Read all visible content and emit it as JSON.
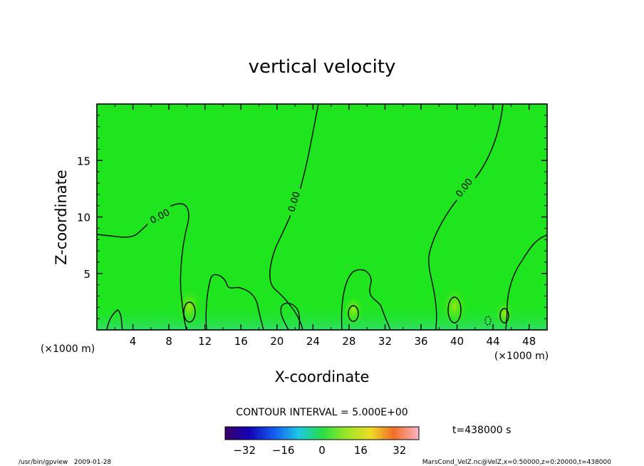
{
  "chart_data": {
    "type": "heatmap",
    "title": "vertical velocity",
    "xlabel": "X-coordinate",
    "ylabel": "Z-coordinate",
    "x_unit": "(×1000 m)",
    "y_unit": "(×1000 m)",
    "xlim": [
      0,
      50
    ],
    "ylim": [
      0,
      20
    ],
    "x_ticks": [
      4,
      8,
      12,
      16,
      20,
      24,
      28,
      32,
      36,
      40,
      44,
      48
    ],
    "y_ticks": [
      5,
      10,
      15
    ],
    "contour_interval_text": "CONTOUR INTERVAL = 5.000E+00",
    "contour_label": "0.00",
    "colorbar": {
      "range": [
        -40,
        40
      ],
      "ticks": [
        -32,
        -16,
        0,
        16,
        32
      ]
    },
    "time_label": "t=438000 s",
    "background_color": "#1ee51e",
    "colors": {
      "field": "#1ee51e",
      "updraft": "#7fe01a",
      "downdraft": "#34d88a"
    }
  },
  "footer": {
    "left": "/usr/bin/gpview   2009-01-28",
    "right": "MarsCond_VelZ.nc@VelZ,x=0:50000,z=0:20000,t=438000"
  }
}
